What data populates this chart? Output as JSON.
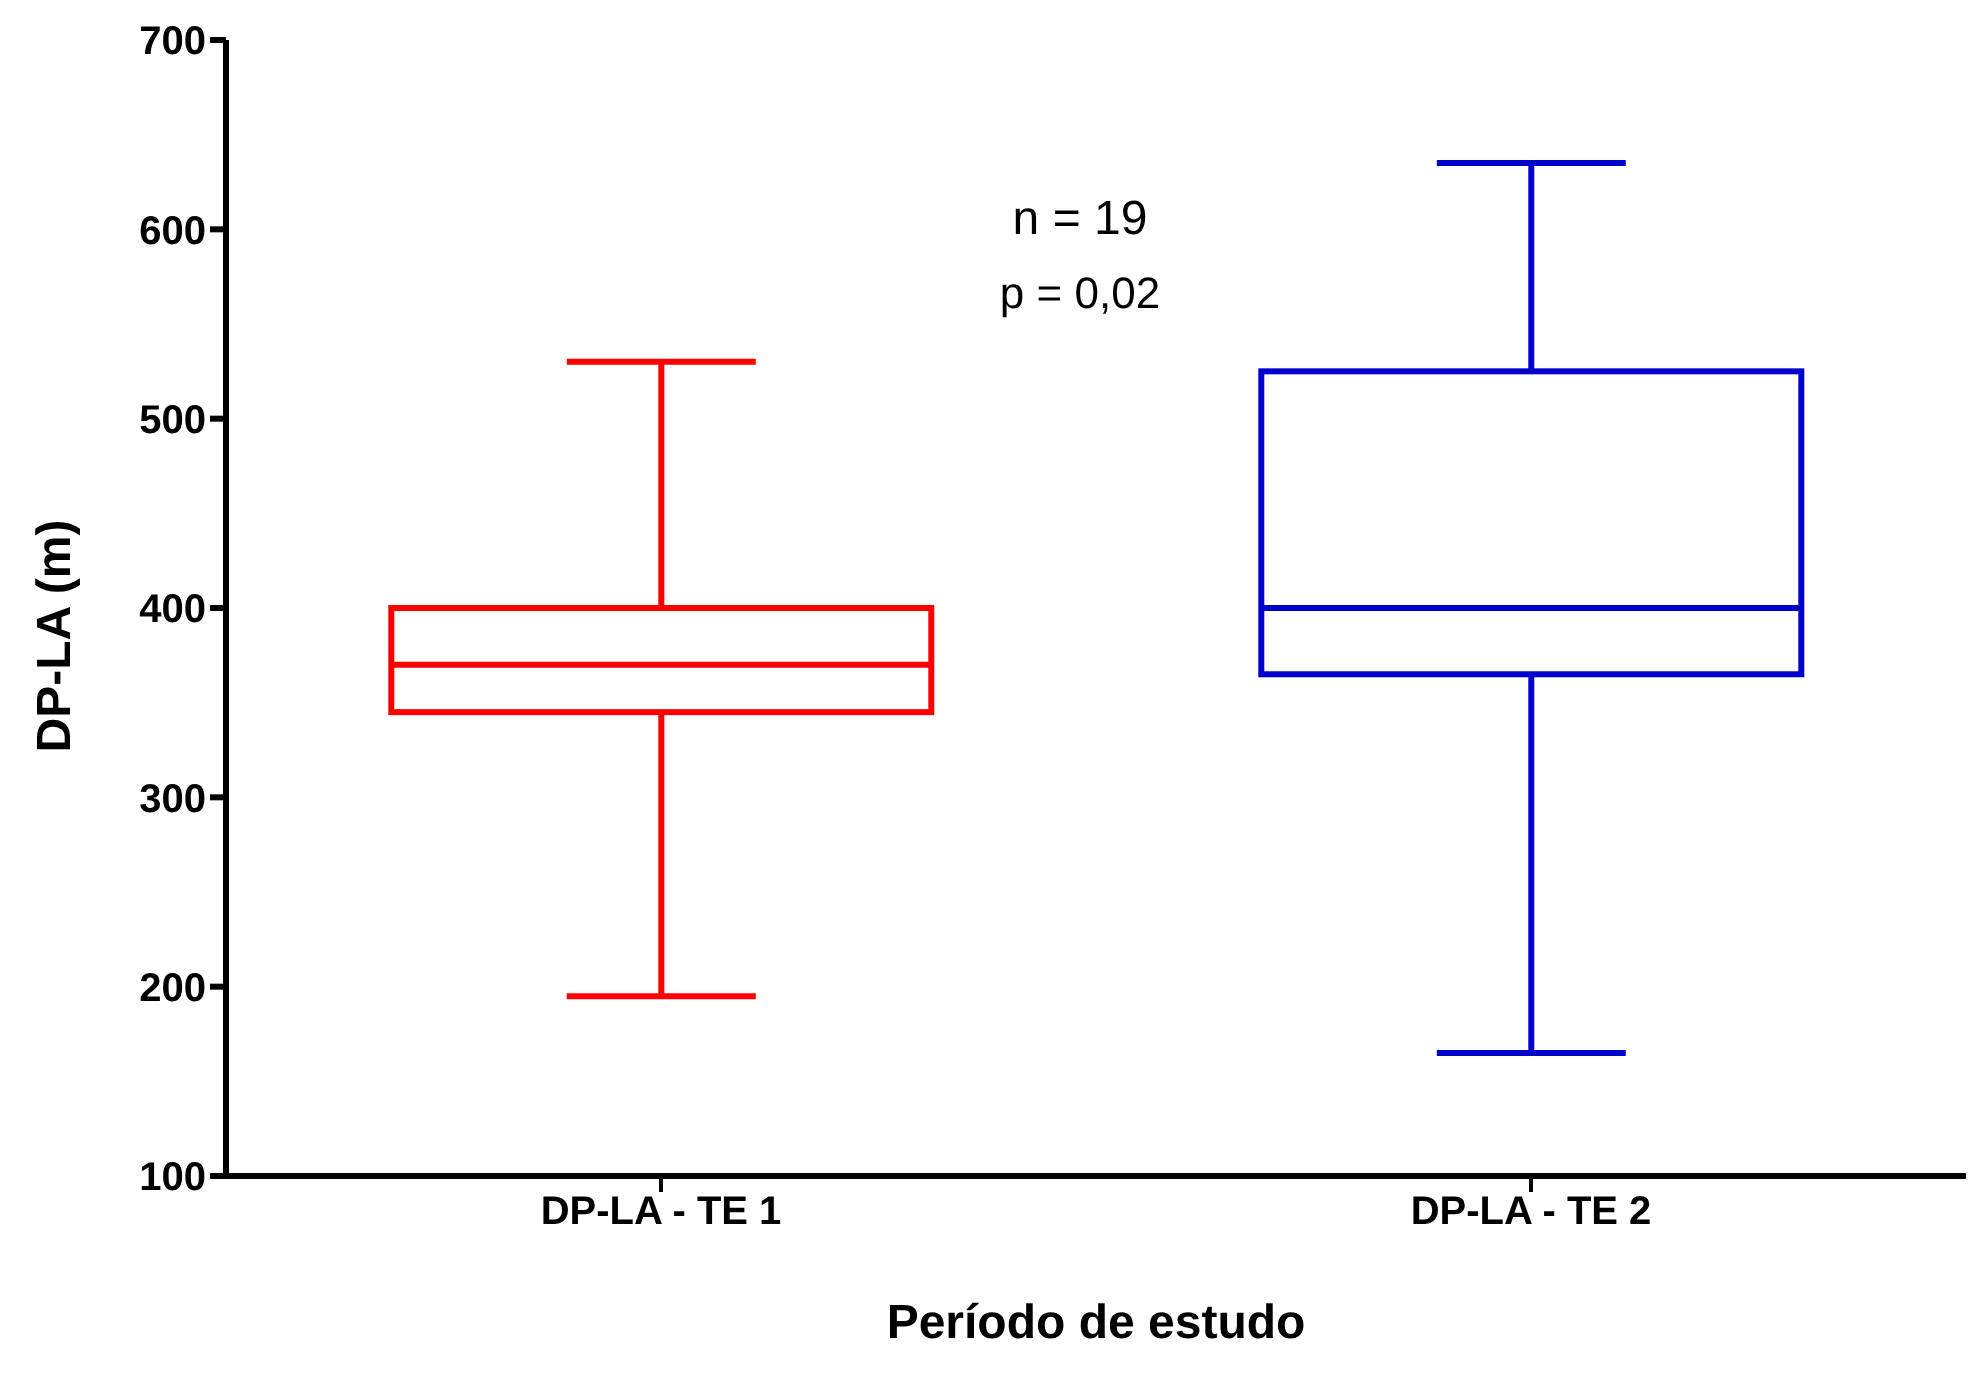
{
  "chart_data": {
    "type": "box",
    "xlabel": "Período de estudo",
    "ylabel": "DP-LA (m)",
    "categories": [
      "DP-LA - TE 1",
      "DP-LA - TE 2"
    ],
    "colors": [
      "#ff0000",
      "#0000cc"
    ],
    "boxes": [
      {
        "low": 195,
        "q1": 345,
        "median": 370,
        "q3": 400,
        "high": 530
      },
      {
        "low": 165,
        "q1": 365,
        "median": 400,
        "q3": 525,
        "high": 635
      }
    ],
    "ylim": [
      100,
      700
    ],
    "yticks": [
      100,
      200,
      300,
      400,
      500,
      600,
      700
    ],
    "annotations": [
      "n = 19",
      "p = 0,02"
    ]
  }
}
